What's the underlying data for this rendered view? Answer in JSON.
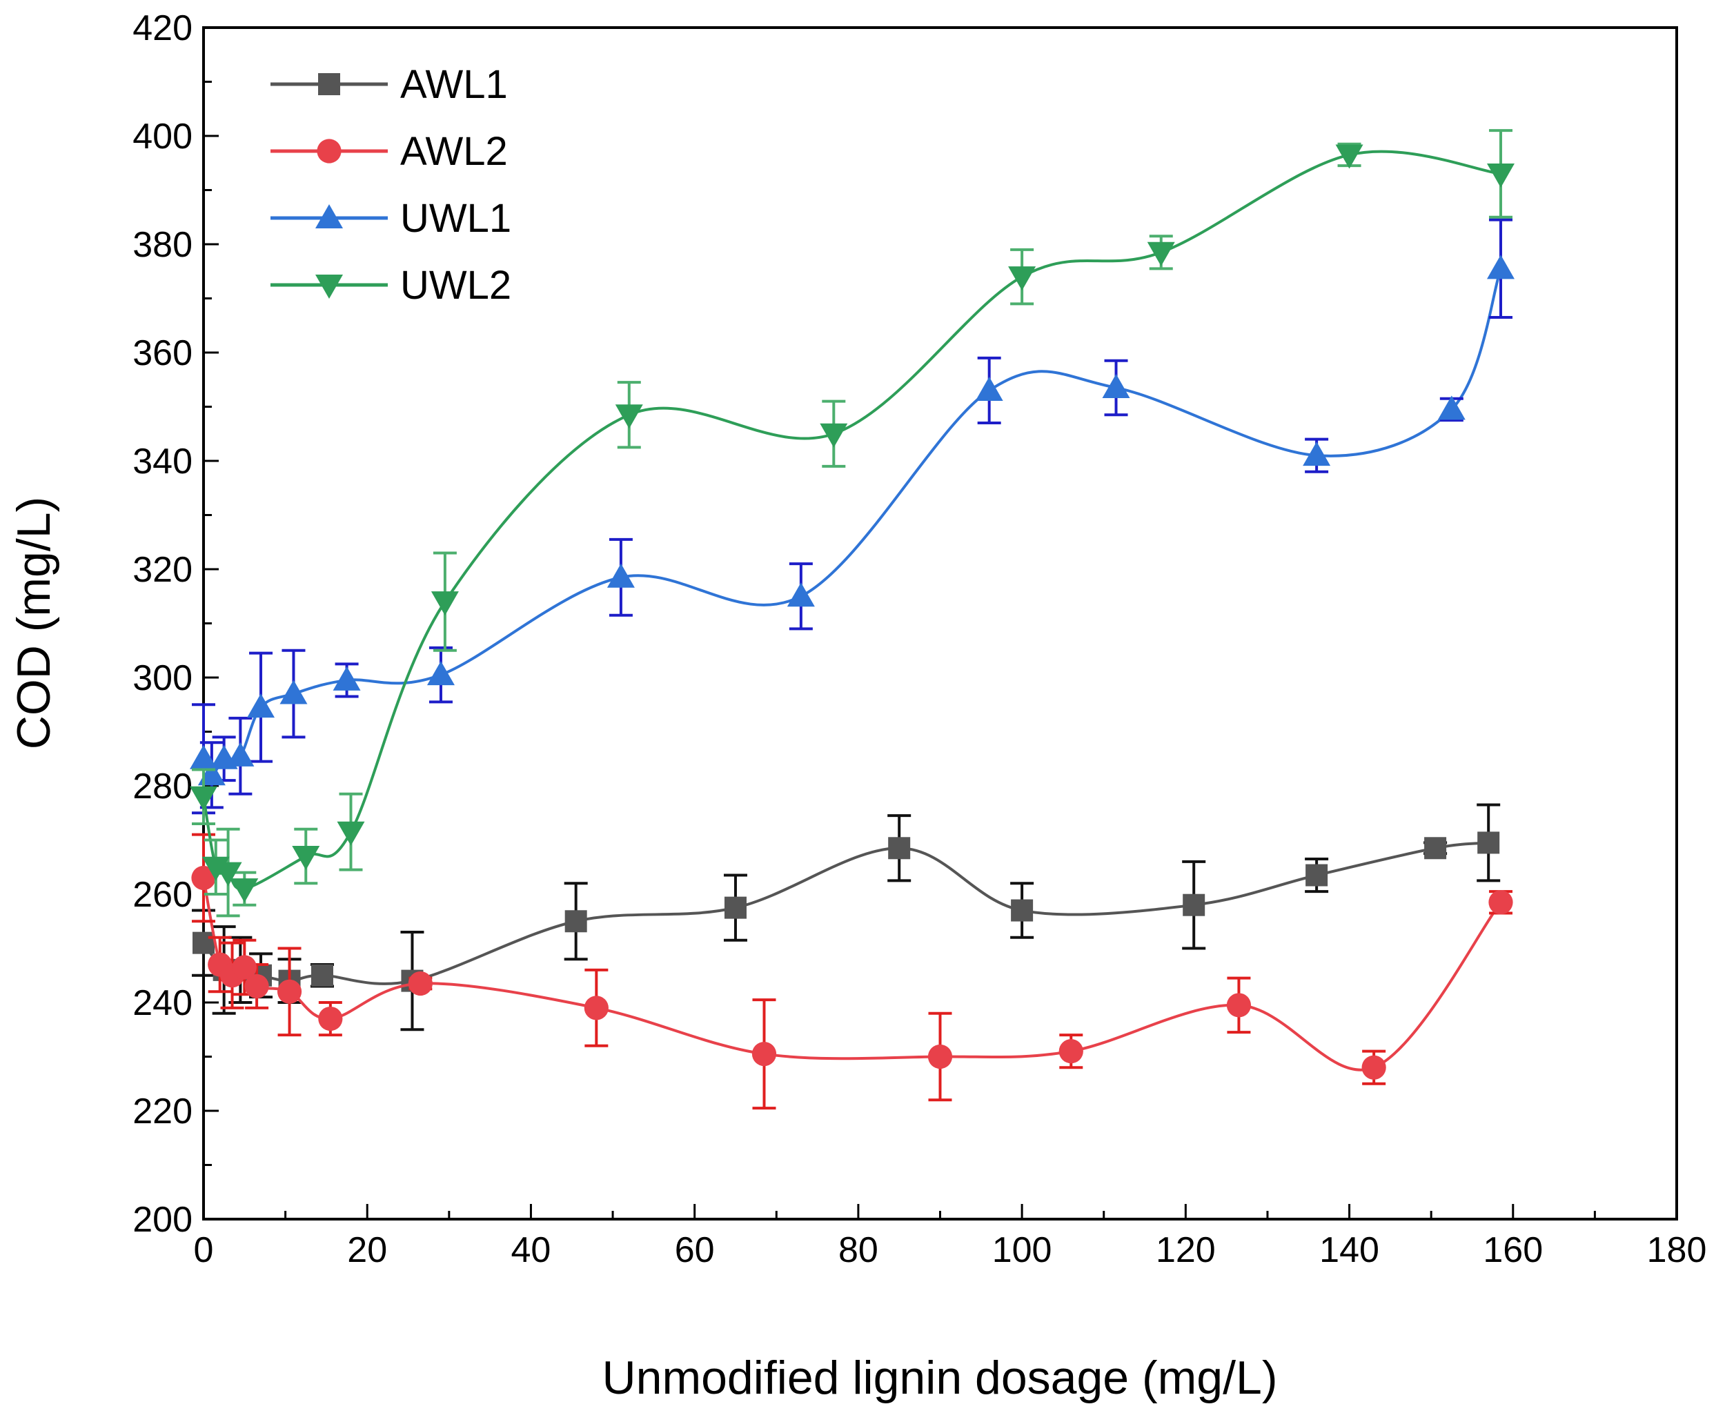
{
  "chart_data": {
    "type": "line",
    "title": "",
    "xlabel": "Unmodified lignin dosage (mg/L)",
    "ylabel": "COD (mg/L)",
    "xlim": [
      0,
      180
    ],
    "ylim": [
      200,
      420
    ],
    "xticks": [
      0,
      20,
      40,
      60,
      80,
      100,
      120,
      140,
      160,
      180
    ],
    "yticks": [
      200,
      220,
      240,
      260,
      280,
      300,
      320,
      340,
      360,
      380,
      400,
      420
    ],
    "xtick_labels": [
      "0",
      "20",
      "40",
      "60",
      "80",
      "100",
      "120",
      "140",
      "160",
      "180"
    ],
    "ytick_labels": [
      "200",
      "220",
      "240",
      "260",
      "280",
      "300",
      "320",
      "340",
      "360",
      "380",
      "400",
      "420"
    ],
    "grid": false,
    "legend_position": "top-left",
    "series": [
      {
        "name": "AWL1",
        "color": "#555555",
        "error_color": "#111111",
        "marker": "square",
        "x": [
          0,
          2.5,
          4.5,
          7,
          10.5,
          14.5,
          25.5,
          45.5,
          65,
          85,
          100,
          121,
          136,
          150.5,
          157
        ],
        "y": [
          251,
          246,
          246,
          245,
          244,
          245,
          244,
          255,
          257.5,
          268.5,
          257,
          258,
          263.5,
          268.5,
          269.5
        ],
        "err": [
          6,
          8,
          6,
          4,
          4,
          2,
          9,
          7,
          6,
          6,
          5,
          8,
          3,
          1,
          7
        ]
      },
      {
        "name": "AWL2",
        "color": "#e8414a",
        "error_color": "#e01f1f",
        "marker": "circle",
        "x": [
          0,
          2,
          3.5,
          5,
          6.5,
          10.5,
          15.5,
          26.5,
          48,
          68.5,
          90,
          106,
          126.5,
          143,
          158.5
        ],
        "y": [
          263,
          247,
          245,
          246.5,
          243,
          242,
          237,
          243.5,
          239,
          230.5,
          230,
          231,
          239.5,
          228,
          258.5
        ],
        "err": [
          8,
          5,
          6,
          5,
          4,
          8,
          3,
          1,
          7,
          10,
          8,
          3,
          5,
          3,
          2
        ]
      },
      {
        "name": "UWL1",
        "color": "#2f74d6",
        "error_color": "#1d1dc8",
        "marker": "triangle-up",
        "x": [
          0,
          1,
          2.5,
          4.5,
          7,
          11,
          17.5,
          29,
          51,
          73,
          96,
          111.5,
          136,
          152.5,
          158.5
        ],
        "y": [
          285,
          282,
          285,
          285.5,
          294.5,
          297,
          299.5,
          300.5,
          318.5,
          315,
          353,
          353.5,
          341,
          349.5,
          375.5
        ],
        "err": [
          10,
          6,
          4,
          7,
          10,
          8,
          3,
          5,
          7,
          6,
          6,
          5,
          3,
          2,
          9
        ]
      },
      {
        "name": "UWL2",
        "color": "#2e9e58",
        "error_color": "#4caf6e",
        "marker": "triangle-down",
        "x": [
          0,
          1.5,
          3,
          5,
          12.5,
          18,
          29.5,
          52,
          77,
          100,
          117,
          140,
          158.5
        ],
        "y": [
          278,
          265,
          264,
          261,
          267,
          271.5,
          314,
          348.5,
          345,
          374,
          378.5,
          396.5,
          393
        ],
        "err": [
          5,
          5,
          8,
          3,
          5,
          7,
          9,
          6,
          6,
          5,
          3,
          2,
          8
        ]
      }
    ]
  }
}
